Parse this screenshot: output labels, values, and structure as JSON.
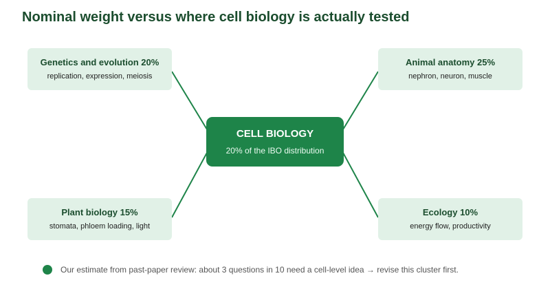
{
  "title": "Nominal weight versus where cell biology is actually tested",
  "center": {
    "title": "CELL BIOLOGY",
    "subtitle": "20% of the IBO distribution"
  },
  "nodes": {
    "genetics": {
      "title": "Genetics and evolution 20%",
      "subtitle": "replication, expression, meiosis"
    },
    "animal": {
      "title": "Animal anatomy 25%",
      "subtitle": "nephron, neuron, muscle"
    },
    "plant": {
      "title": "Plant biology 15%",
      "subtitle": "stomata, phloem loading, light"
    },
    "ecology": {
      "title": "Ecology 10%",
      "subtitle": "energy flow, productivity"
    }
  },
  "footer": {
    "text": "Our estimate from past-paper review: about 3 questions in 10 need a cell-level idea → revise this cluster first."
  },
  "colors": {
    "accent": "#1e8449",
    "node_fill": "#e1f1e7",
    "heading": "#1b4d2e"
  }
}
